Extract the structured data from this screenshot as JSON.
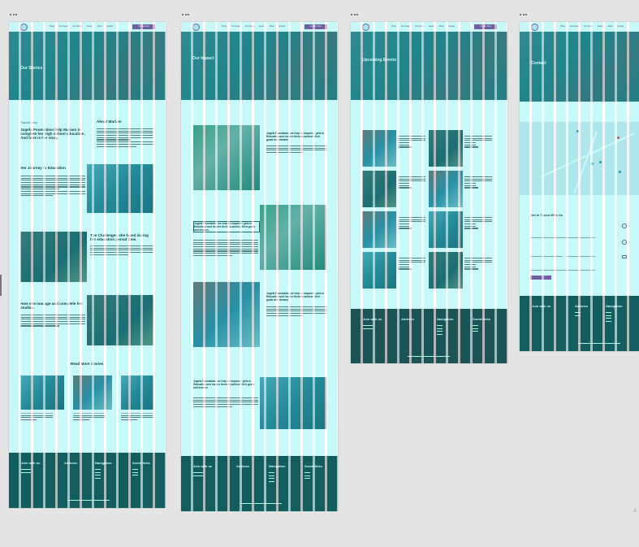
{
  "nav": {
    "links": [
      "Home",
      "Our Impact",
      "Our Stories",
      "Events",
      "About",
      "Contact"
    ],
    "donate_label": "Donate Now"
  },
  "artboards": [
    {
      "hero_title": "Our Stories"
    },
    {
      "hero_title": "Our Impact"
    },
    {
      "hero_title": "Upcoming Events"
    },
    {
      "hero_title": "Contact"
    }
  ],
  "stories": {
    "popular_label": "Popular Story",
    "popular_heading": "Jugefa Foundation help Mariam to complete her high school education. And here is her story.",
    "about_heading": "About Mariam",
    "journey_heading": "Her Journey to Education",
    "challenges_heading": "The Challenges she faced during her education period time.",
    "manage_heading": "How she manage and complete her studies.",
    "read_more_heading": "Read More Stories"
  },
  "impact": {
    "block_text": "Jugefa Foundation we help to empower girls in Education and inspire them to achieve their goals and dreams."
  },
  "contact": {
    "form_heading": "Get In Touch With Us"
  },
  "footer": {
    "join": "Join with us",
    "address": "Address",
    "navigation": "Navigation",
    "social": "Social links"
  },
  "colors": {
    "accent": "#8b3a8b",
    "footer": "#1f4a4a",
    "grid_overlay": "#00e5eb"
  }
}
